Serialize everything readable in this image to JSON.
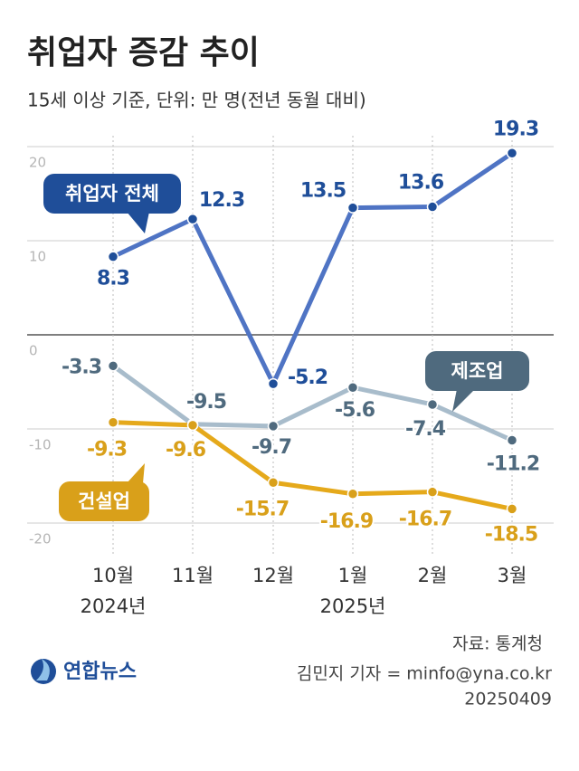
{
  "chart_data": {
    "type": "line",
    "title": "취업자 증감 추이",
    "subtitle": "15세 이상 기준, 단위: 만 명(전년 동월 대비)",
    "categories": [
      "10월",
      "11월",
      "12월",
      "1월",
      "2월",
      "3월"
    ],
    "year_labels": [
      "2024년",
      "2025년"
    ],
    "series": [
      {
        "name": "취업자 전체",
        "color": "#4f74c4",
        "label_color": "#1f4e99",
        "values": [
          8.3,
          12.3,
          -5.2,
          13.5,
          13.6,
          19.3
        ]
      },
      {
        "name": "제조업",
        "color": "#a8bccb",
        "label_color": "#4f6a7e",
        "values": [
          -3.3,
          -9.5,
          -9.7,
          -5.6,
          -7.4,
          -11.2
        ]
      },
      {
        "name": "건설업",
        "color": "#e5a91b",
        "label_color": "#d9a01a",
        "values": [
          -9.3,
          -9.6,
          -15.7,
          -16.9,
          -16.7,
          -18.5
        ]
      }
    ],
    "ylim": [
      -25,
      22
    ],
    "yticks": [
      20,
      10,
      0,
      -10,
      -20
    ],
    "grid": true,
    "source": "자료: 통계청",
    "logo": "연합뉴스",
    "credit": "김민지 기자 = minfo@yna.co.kr",
    "date": "20250409"
  }
}
